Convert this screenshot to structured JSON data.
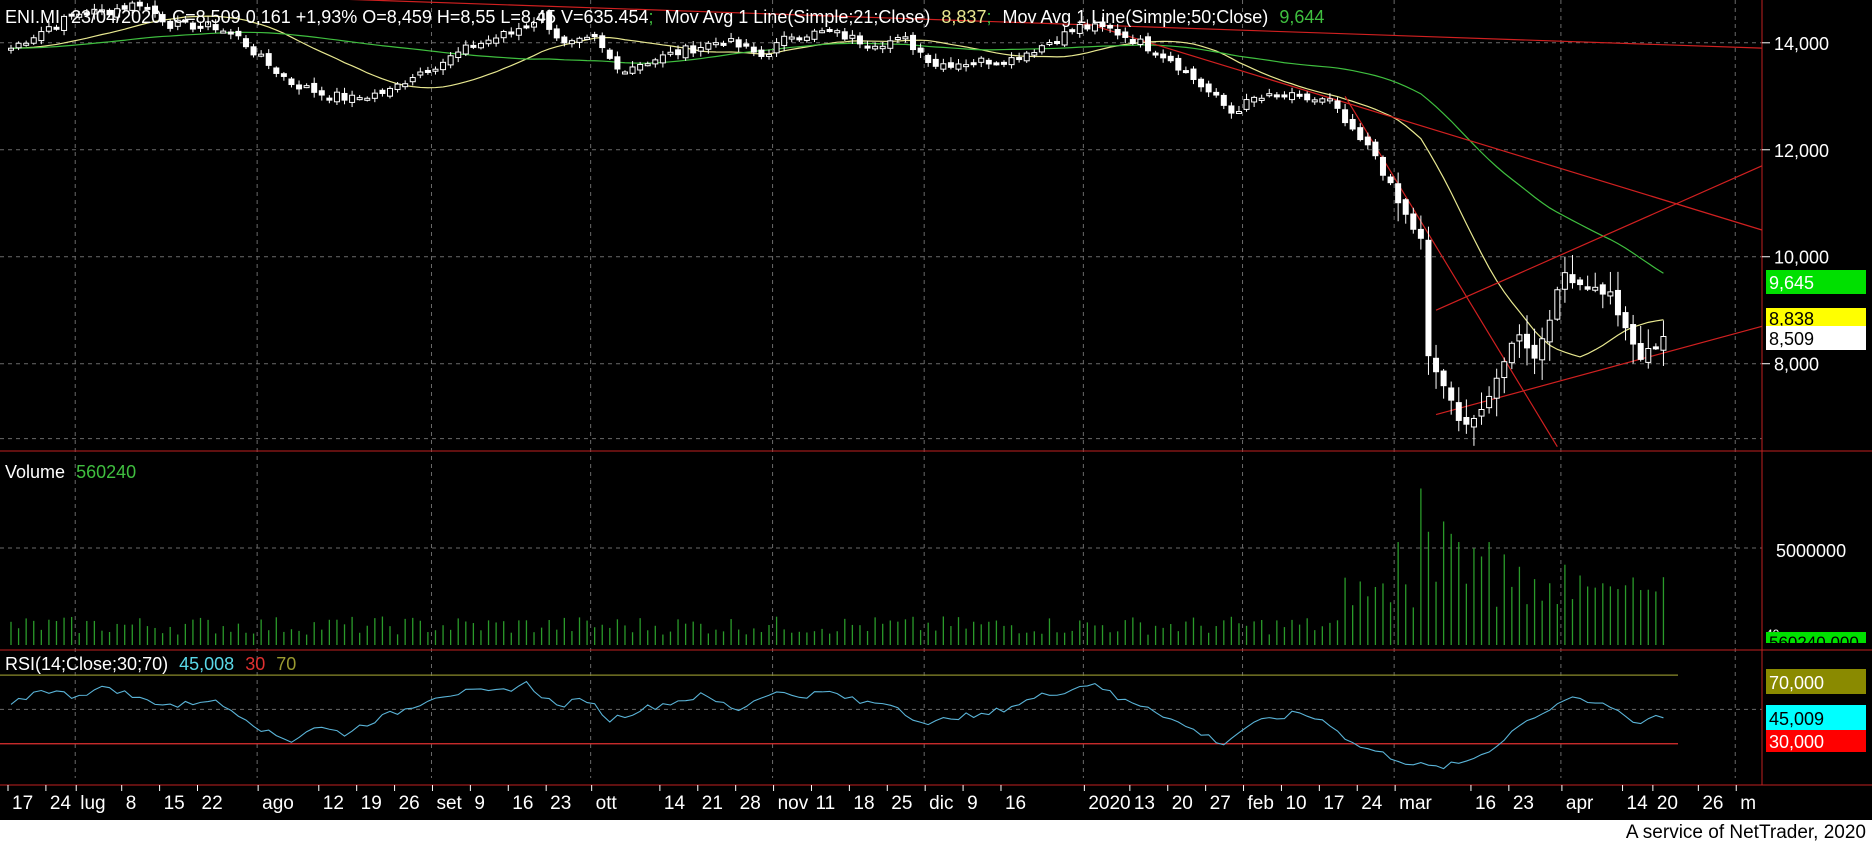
{
  "header": {
    "symbol": "ENI.MI",
    "date": "23/04/2020",
    "ohlc": "C=8,509 0,161 +1,93% O=8,459 H=8,55 L=8,45 V=635.454",
    "ma21_label": "Mov Avg 1 Line(Simple;21;Close)",
    "ma21_value": "8,837",
    "ma50_label": "Mov Avg 1 Line(Simple;50;Close)",
    "ma50_value": "9,644"
  },
  "volume_panel": {
    "label": "Volume",
    "value": "560240",
    "tick": "5000000"
  },
  "rsi_panel": {
    "label": "RSI(14;Close;30;70)",
    "value": "45,008",
    "low": "30",
    "high": "70"
  },
  "badges": {
    "ma50": "9,645",
    "ma21": "8,838",
    "close": "8,509",
    "rsi_high": "70,000",
    "rsi_value": "45,009",
    "rsi_low": "30,000",
    "volume_partial": "560240,000",
    "volume_top_partial": "40"
  },
  "footer": "A service of NetTrader, 2020",
  "colors": {
    "background": "#000000",
    "candle": "#ffffff",
    "ma21": "#e8e890",
    "ma50": "#3fbf3f",
    "trendline": "#d02020",
    "volume": "#2a9a2a",
    "rsi": "#5ab4d8",
    "rsi_high_line": "#8a8a2a",
    "rsi_low_line": "#e03030",
    "grid": "#6a6a6a"
  },
  "chart_data": [
    {
      "type": "candlestick",
      "panel": "price",
      "ylim": [
        6.2,
        14.8
      ],
      "yticks": [
        {
          "value": 8,
          "label": "8,000"
        },
        {
          "value": 10,
          "label": "10,000"
        },
        {
          "value": 12,
          "label": "12,000"
        },
        {
          "value": 14,
          "label": "14,000"
        }
      ],
      "x_axis_labels": [
        {
          "t": 0,
          "label": "17"
        },
        {
          "t": 5,
          "label": "24"
        },
        {
          "t": 9,
          "label": "lug"
        },
        {
          "t": 15,
          "label": "8"
        },
        {
          "t": 20,
          "label": "15"
        },
        {
          "t": 25,
          "label": "22"
        },
        {
          "t": 33,
          "label": "ago"
        },
        {
          "t": 41,
          "label": "12"
        },
        {
          "t": 46,
          "label": "19"
        },
        {
          "t": 51,
          "label": "26"
        },
        {
          "t": 56,
          "label": "set"
        },
        {
          "t": 61,
          "label": "9"
        },
        {
          "t": 66,
          "label": "16"
        },
        {
          "t": 71,
          "label": "23"
        },
        {
          "t": 77,
          "label": "ott"
        },
        {
          "t": 86,
          "label": "14"
        },
        {
          "t": 91,
          "label": "21"
        },
        {
          "t": 96,
          "label": "28"
        },
        {
          "t": 101,
          "label": "nov"
        },
        {
          "t": 106,
          "label": "11"
        },
        {
          "t": 111,
          "label": "18"
        },
        {
          "t": 116,
          "label": "25"
        },
        {
          "t": 121,
          "label": "dic"
        },
        {
          "t": 126,
          "label": "9"
        },
        {
          "t": 131,
          "label": "16"
        },
        {
          "t": 142,
          "label": "2020"
        },
        {
          "t": 148,
          "label": "13"
        },
        {
          "t": 153,
          "label": "20"
        },
        {
          "t": 158,
          "label": "27"
        },
        {
          "t": 163,
          "label": "feb"
        },
        {
          "t": 168,
          "label": "10"
        },
        {
          "t": 173,
          "label": "17"
        },
        {
          "t": 178,
          "label": "24"
        },
        {
          "t": 183,
          "label": "mar"
        },
        {
          "t": 193,
          "label": "16"
        },
        {
          "t": 198,
          "label": "23"
        },
        {
          "t": 205,
          "label": "apr"
        },
        {
          "t": 213,
          "label": "14"
        },
        {
          "t": 217,
          "label": "20"
        },
        {
          "t": 223,
          "label": "26"
        },
        {
          "t": 228,
          "label": "m"
        }
      ],
      "close_anchors": [
        {
          "t": 0,
          "v": 13.9
        },
        {
          "t": 5,
          "v": 14.3
        },
        {
          "t": 9,
          "v": 14.55
        },
        {
          "t": 13,
          "v": 14.6
        },
        {
          "t": 17,
          "v": 14.75
        },
        {
          "t": 21,
          "v": 14.35
        },
        {
          "t": 27,
          "v": 14.3
        },
        {
          "t": 30,
          "v": 14.1
        },
        {
          "t": 33,
          "v": 13.7
        },
        {
          "t": 37,
          "v": 13.25
        },
        {
          "t": 41,
          "v": 13.05
        },
        {
          "t": 45,
          "v": 12.95
        },
        {
          "t": 50,
          "v": 13.1
        },
        {
          "t": 53,
          "v": 13.4
        },
        {
          "t": 57,
          "v": 13.65
        },
        {
          "t": 61,
          "v": 13.95
        },
        {
          "t": 66,
          "v": 14.2
        },
        {
          "t": 70,
          "v": 14.5
        },
        {
          "t": 73,
          "v": 13.95
        },
        {
          "t": 77,
          "v": 14.05
        },
        {
          "t": 80,
          "v": 13.5
        },
        {
          "t": 85,
          "v": 13.7
        },
        {
          "t": 90,
          "v": 13.9
        },
        {
          "t": 94,
          "v": 14.05
        },
        {
          "t": 99,
          "v": 13.75
        },
        {
          "t": 103,
          "v": 14.15
        },
        {
          "t": 108,
          "v": 14.2
        },
        {
          "t": 113,
          "v": 14.0
        },
        {
          "t": 118,
          "v": 14.05
        },
        {
          "t": 122,
          "v": 13.6
        },
        {
          "t": 127,
          "v": 13.65
        },
        {
          "t": 132,
          "v": 13.7
        },
        {
          "t": 136,
          "v": 13.95
        },
        {
          "t": 141,
          "v": 14.3
        },
        {
          "t": 145,
          "v": 14.25
        },
        {
          "t": 149,
          "v": 14.0
        },
        {
          "t": 153,
          "v": 13.7
        },
        {
          "t": 157,
          "v": 13.2
        },
        {
          "t": 161,
          "v": 12.7
        },
        {
          "t": 164,
          "v": 12.95
        },
        {
          "t": 168,
          "v": 13.0
        },
        {
          "t": 174,
          "v": 12.9
        },
        {
          "t": 177,
          "v": 12.3
        },
        {
          "t": 180,
          "v": 11.9
        },
        {
          "t": 183,
          "v": 11.0
        },
        {
          "t": 186,
          "v": 10.3
        },
        {
          "t": 187,
          "v": 8.1
        },
        {
          "t": 189,
          "v": 7.6
        },
        {
          "t": 191,
          "v": 6.9
        },
        {
          "t": 193,
          "v": 7.0
        },
        {
          "t": 195,
          "v": 7.3
        },
        {
          "t": 197,
          "v": 8.1
        },
        {
          "t": 199,
          "v": 8.6
        },
        {
          "t": 201,
          "v": 8.1
        },
        {
          "t": 203,
          "v": 8.9
        },
        {
          "t": 205,
          "v": 9.7
        },
        {
          "t": 207,
          "v": 9.5
        },
        {
          "t": 209,
          "v": 9.4
        },
        {
          "t": 211,
          "v": 9.3
        },
        {
          "t": 213,
          "v": 8.6
        },
        {
          "t": 215,
          "v": 8.1
        },
        {
          "t": 217,
          "v": 8.35
        },
        {
          "t": 218,
          "v": 8.509
        }
      ],
      "trendlines": [
        {
          "from": {
            "t": 6,
            "v": 15.0
          },
          "to": {
            "t": 231,
            "v": 13.9
          }
        },
        {
          "from": {
            "t": 141,
            "v": 14.4
          },
          "to": {
            "t": 231,
            "v": 10.5
          }
        },
        {
          "from": {
            "t": 176,
            "v": 13.0
          },
          "to": {
            "t": 204,
            "v": 6.45
          }
        },
        {
          "from": {
            "t": 188,
            "v": 7.05
          },
          "to": {
            "t": 231,
            "v": 8.7
          }
        },
        {
          "from": {
            "t": 188,
            "v": 9.0
          },
          "to": {
            "t": 231,
            "v": 11.7
          }
        }
      ]
    },
    {
      "type": "bar",
      "panel": "volume",
      "ylim": [
        0,
        8500000
      ],
      "spike_days": [
        {
          "t": 183,
          "v": 5000000
        },
        {
          "t": 186,
          "v": 7600000
        },
        {
          "t": 187,
          "v": 5500000
        },
        {
          "t": 189,
          "v": 6000000
        },
        {
          "t": 190,
          "v": 5400000
        },
        {
          "t": 191,
          "v": 5000000
        },
        {
          "t": 193,
          "v": 4700000
        },
        {
          "t": 194,
          "v": 4300000
        },
        {
          "t": 195,
          "v": 5000000
        },
        {
          "t": 197,
          "v": 4400000
        },
        {
          "t": 199,
          "v": 3800000
        },
        {
          "t": 201,
          "v": 3200000
        },
        {
          "t": 203,
          "v": 3000000
        },
        {
          "t": 205,
          "v": 3900000
        },
        {
          "t": 213,
          "v": 2900000
        },
        {
          "t": 217,
          "v": 2600000
        }
      ]
    },
    {
      "type": "line",
      "panel": "rsi",
      "ylim": [
        10,
        80
      ],
      "levels": [
        30,
        70
      ],
      "anchors": [
        {
          "t": 0,
          "v": 52
        },
        {
          "t": 4,
          "v": 62
        },
        {
          "t": 8,
          "v": 58
        },
        {
          "t": 13,
          "v": 63
        },
        {
          "t": 17,
          "v": 56
        },
        {
          "t": 22,
          "v": 52
        },
        {
          "t": 26,
          "v": 56
        },
        {
          "t": 30,
          "v": 48
        },
        {
          "t": 34,
          "v": 36
        },
        {
          "t": 37,
          "v": 32
        },
        {
          "t": 40,
          "v": 40
        },
        {
          "t": 44,
          "v": 36
        },
        {
          "t": 48,
          "v": 44
        },
        {
          "t": 52,
          "v": 50
        },
        {
          "t": 56,
          "v": 58
        },
        {
          "t": 60,
          "v": 60
        },
        {
          "t": 64,
          "v": 60
        },
        {
          "t": 68,
          "v": 65
        },
        {
          "t": 72,
          "v": 52
        },
        {
          "t": 76,
          "v": 56
        },
        {
          "t": 79,
          "v": 44
        },
        {
          "t": 83,
          "v": 50
        },
        {
          "t": 87,
          "v": 54
        },
        {
          "t": 91,
          "v": 58
        },
        {
          "t": 96,
          "v": 50
        },
        {
          "t": 100,
          "v": 60
        },
        {
          "t": 104,
          "v": 58
        },
        {
          "t": 108,
          "v": 60
        },
        {
          "t": 112,
          "v": 54
        },
        {
          "t": 116,
          "v": 54
        },
        {
          "t": 121,
          "v": 40
        },
        {
          "t": 124,
          "v": 46
        },
        {
          "t": 128,
          "v": 46
        },
        {
          "t": 132,
          "v": 52
        },
        {
          "t": 136,
          "v": 58
        },
        {
          "t": 140,
          "v": 62
        },
        {
          "t": 143,
          "v": 66
        },
        {
          "t": 146,
          "v": 56
        },
        {
          "t": 150,
          "v": 52
        },
        {
          "t": 154,
          "v": 42
        },
        {
          "t": 157,
          "v": 36
        },
        {
          "t": 160,
          "v": 30
        },
        {
          "t": 163,
          "v": 40
        },
        {
          "t": 166,
          "v": 44
        },
        {
          "t": 170,
          "v": 48
        },
        {
          "t": 174,
          "v": 42
        },
        {
          "t": 177,
          "v": 30
        },
        {
          "t": 181,
          "v": 24
        },
        {
          "t": 185,
          "v": 18
        },
        {
          "t": 188,
          "v": 16
        },
        {
          "t": 191,
          "v": 18
        },
        {
          "t": 194,
          "v": 24
        },
        {
          "t": 197,
          "v": 32
        },
        {
          "t": 199,
          "v": 42
        },
        {
          "t": 203,
          "v": 50
        },
        {
          "t": 205,
          "v": 56
        },
        {
          "t": 208,
          "v": 54
        },
        {
          "t": 211,
          "v": 52
        },
        {
          "t": 213,
          "v": 46
        },
        {
          "t": 215,
          "v": 42
        },
        {
          "t": 217,
          "v": 47
        },
        {
          "t": 218,
          "v": 45
        }
      ]
    }
  ]
}
